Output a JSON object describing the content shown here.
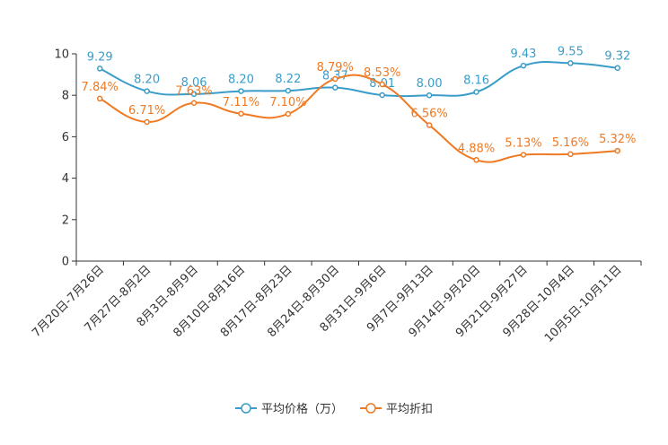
{
  "chart_data": {
    "type": "line",
    "title": "",
    "xlabel": "",
    "ylabel": "",
    "ylim": [
      0,
      10
    ],
    "yticks": [
      "0",
      "2",
      "4",
      "6",
      "8",
      "10"
    ],
    "categories": [
      "7月20日-7月26日",
      "7月27日-8月2日",
      "8月3日-8月9日",
      "8月10日-8月16日",
      "8月17日-8月23日",
      "8月24日-8月30日",
      "8月31日-9月6日",
      "9月7日-9月13日",
      "9月14日-9月20日",
      "9月21日-9月27日",
      "9月28日-10月4日",
      "10月5日-10月11日"
    ],
    "series": [
      {
        "name": "平均价格（万）",
        "color": "#3a9dc9",
        "values": [
          9.29,
          8.2,
          8.06,
          8.2,
          8.22,
          8.37,
          8.01,
          8.0,
          8.16,
          9.43,
          9.55,
          9.32
        ],
        "labels": [
          "9.29",
          "8.20",
          "8.06",
          "8.20",
          "8.22",
          "8.37",
          "8.01",
          "8.00",
          "8.16",
          "9.43",
          "9.55",
          "9.32"
        ]
      },
      {
        "name": "平均折扣",
        "color": "#f07923",
        "values": [
          7.84,
          6.71,
          7.63,
          7.11,
          7.1,
          8.79,
          8.53,
          6.56,
          4.88,
          5.13,
          5.16,
          5.32
        ],
        "labels": [
          "7.84%",
          "6.71%",
          "7.63%",
          "7.11%",
          "7.10%",
          "8.79%",
          "8.53%",
          "6.56%",
          "4.88%",
          "5.13%",
          "5.16%",
          "5.32%"
        ]
      }
    ],
    "legend_position": "bottom",
    "grid": false
  }
}
